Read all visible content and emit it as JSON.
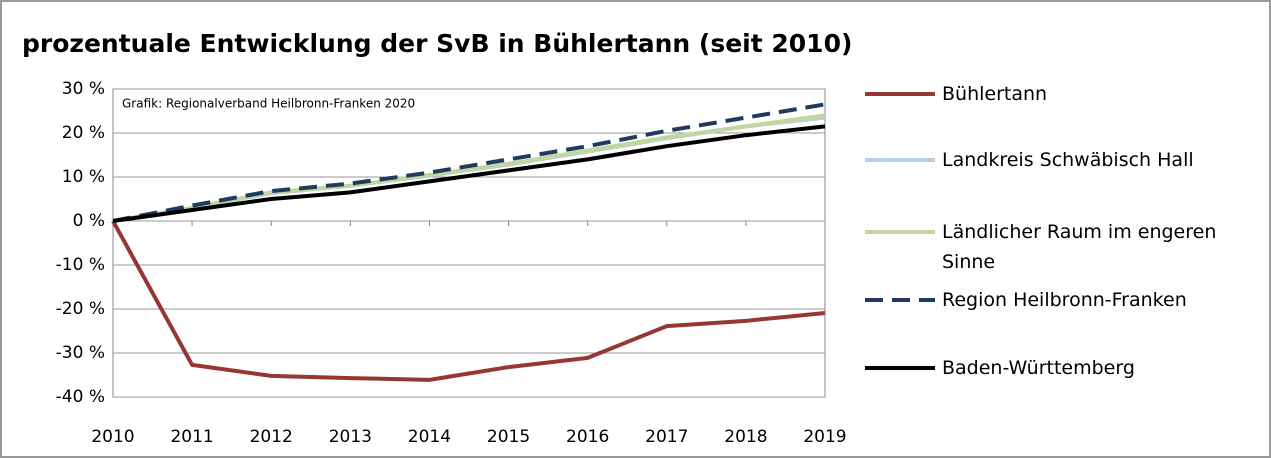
{
  "chart_data": {
    "type": "line",
    "title": "prozentuale Entwicklung der SvB in Bühlertann (seit 2010)",
    "annotation": "Grafik: Regionalverband Heilbronn-Franken 2020",
    "categories": [
      "2010",
      "2011",
      "2012",
      "2013",
      "2014",
      "2015",
      "2016",
      "2017",
      "2018",
      "2019"
    ],
    "series": [
      {
        "name": "Bühlertann",
        "color": "#953735",
        "values": [
          0,
          -32.7,
          -35.2,
          -35.7,
          -36.1,
          -33.2,
          -31.1,
          -23.9,
          -22.7,
          -20.9
        ]
      },
      {
        "name": "Landkreis Schwäbisch Hall",
        "color": "#b9cde5",
        "values": [
          0,
          3,
          6.3,
          8,
          10.3,
          12.8,
          15.8,
          18.8,
          21.5,
          23.5
        ]
      },
      {
        "name": "Ländlicher Raum im engeren Sinne",
        "color": "#c3d69b",
        "values": [
          0,
          3,
          6.5,
          8,
          10.5,
          13,
          16,
          19,
          21.5,
          24
        ]
      },
      {
        "name": "Region Heilbronn-Franken",
        "color": "#1f3b5f",
        "dashed": true,
        "values": [
          0,
          3.5,
          6.8,
          8.5,
          11,
          14,
          17,
          20.5,
          23.5,
          26.5
        ]
      },
      {
        "name": "Baden-Württemberg",
        "color": "#000000",
        "values": [
          0,
          2.5,
          5,
          6.5,
          9,
          11.5,
          14,
          17,
          19.5,
          21.5
        ]
      }
    ],
    "ylim": [
      -40,
      30
    ],
    "yticks": [
      {
        "value": -40,
        "label": "-40 %"
      },
      {
        "value": -30,
        "label": "-30 %"
      },
      {
        "value": -20,
        "label": "-20 %"
      },
      {
        "value": -10,
        "label": "-10 %"
      },
      {
        "value": 0,
        "label": "0 %"
      },
      {
        "value": 10,
        "label": "10 %"
      },
      {
        "value": 20,
        "label": "20 %"
      },
      {
        "value": 30,
        "label": "30 %"
      }
    ],
    "grid": true
  }
}
